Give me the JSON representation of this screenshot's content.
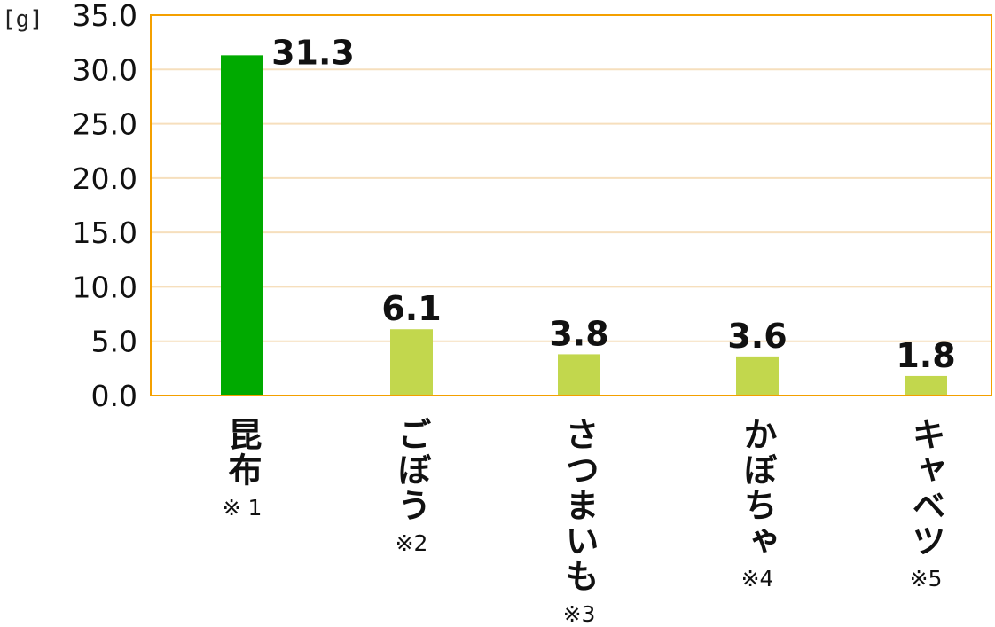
{
  "chart_data": {
    "type": "bar",
    "unit_label": "[g]",
    "categories": [
      "昆布",
      "ごぼう",
      "さつまいも",
      "かぼちゃ",
      "キャベツ"
    ],
    "notes": [
      "※ 1",
      "※2",
      "※3",
      "※4",
      "※5"
    ],
    "values": [
      31.3,
      6.1,
      3.8,
      3.6,
      1.8
    ],
    "value_labels": [
      "31.3",
      "6.1",
      "3.8",
      "3.6",
      "1.8"
    ],
    "ylim": [
      0,
      35
    ],
    "yticks": [
      "0.0",
      "5.0",
      "10.0",
      "15.0",
      "20.0",
      "25.0",
      "30.0",
      "35.0"
    ],
    "grid": true,
    "legend": "none",
    "colors": {
      "highlight_bar": "#00aa00",
      "bar": "#c2d74d",
      "frame": "#f4a000",
      "grid": "#f6dfbd"
    }
  }
}
